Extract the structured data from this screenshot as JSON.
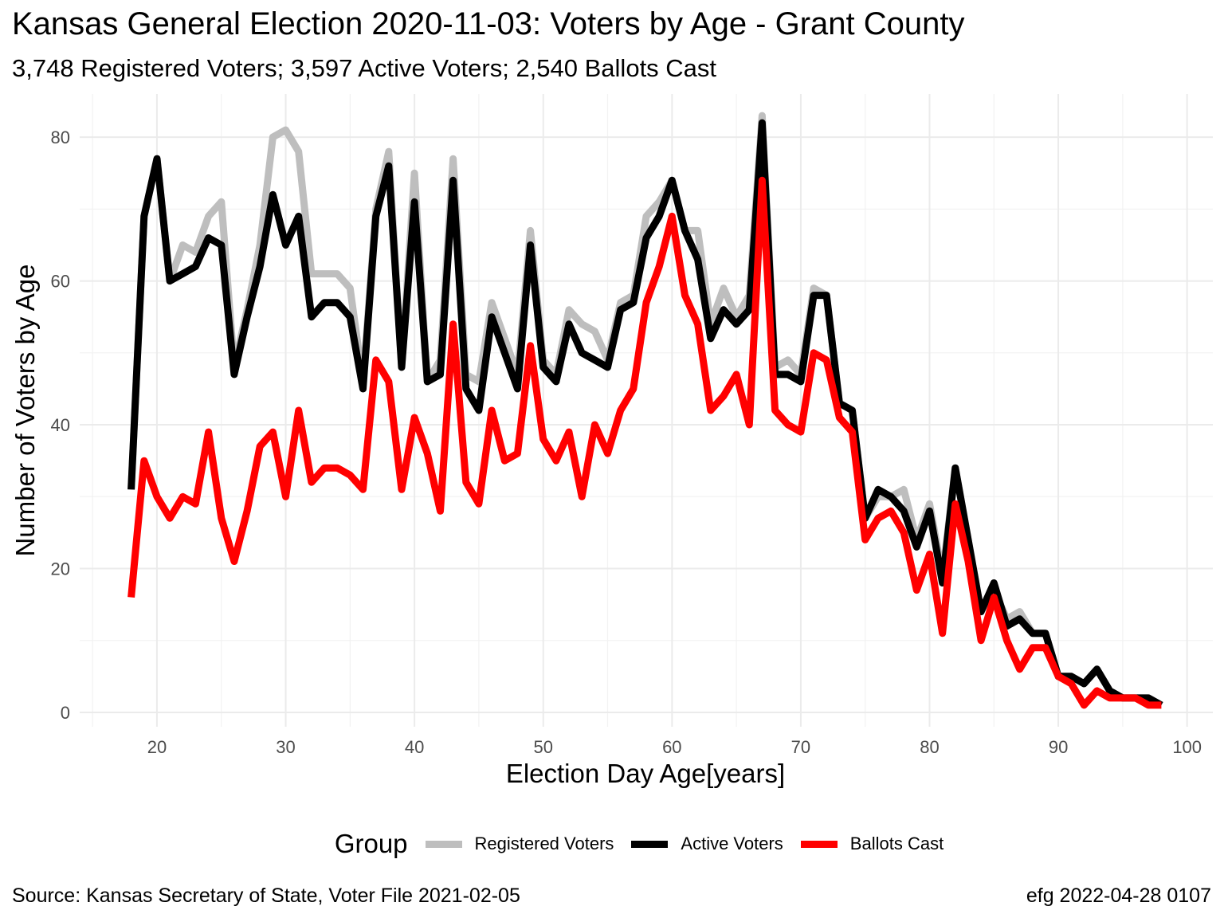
{
  "title": "Kansas General Election 2020-11-03:  Voters by Age - Grant County",
  "subtitle": "3,748 Registered Voters; 3,597 Active Voters; 2,540 Ballots Cast",
  "caption_left": "Source:  Kansas Secretary of State, Voter File  2021-02-05",
  "caption_right": "efg 2022-04-28 0107",
  "legend": {
    "title": "Group",
    "items": [
      {
        "label": "Registered Voters",
        "color": "#bebebe"
      },
      {
        "label": "Active Voters",
        "color": "#000000"
      },
      {
        "label": "Ballots Cast",
        "color": "#ff0000"
      }
    ]
  },
  "chart_data": {
    "type": "line",
    "xlabel": "Election Day Age[years]",
    "ylabel": "Number of Voters by Age",
    "xlim": [
      14,
      102
    ],
    "ylim": [
      -2,
      86
    ],
    "x_ticks": [
      20,
      30,
      40,
      50,
      60,
      70,
      80,
      90,
      100
    ],
    "y_ticks": [
      0,
      20,
      40,
      60,
      80
    ],
    "grid": true,
    "legend_position": "bottom",
    "x": [
      18,
      19,
      20,
      21,
      22,
      23,
      24,
      25,
      26,
      27,
      28,
      29,
      30,
      31,
      32,
      33,
      34,
      35,
      36,
      37,
      38,
      39,
      40,
      41,
      42,
      43,
      44,
      45,
      46,
      47,
      48,
      49,
      50,
      51,
      52,
      53,
      54,
      55,
      56,
      57,
      58,
      59,
      60,
      61,
      62,
      63,
      64,
      65,
      66,
      67,
      68,
      69,
      70,
      71,
      72,
      73,
      74,
      75,
      76,
      77,
      78,
      79,
      80,
      81,
      82,
      83,
      84,
      85,
      86,
      87,
      88,
      89,
      90,
      91,
      92,
      93,
      94,
      95,
      96,
      97,
      98
    ],
    "series": [
      {
        "name": "Registered Voters",
        "color": "#bebebe",
        "values": [
          31,
          69,
          77,
          60,
          65,
          64,
          69,
          71,
          48,
          56,
          65,
          80,
          81,
          78,
          61,
          61,
          61,
          59,
          46,
          70,
          78,
          48,
          75,
          46,
          49,
          77,
          47,
          46,
          57,
          52,
          47,
          67,
          49,
          47,
          56,
          54,
          53,
          49,
          57,
          58,
          69,
          71,
          74,
          67,
          67,
          54,
          59,
          55,
          58,
          83,
          48,
          49,
          47,
          59,
          58,
          43,
          42,
          27,
          30,
          30,
          31,
          24,
          29,
          19,
          34,
          24,
          14,
          17,
          13,
          14,
          11,
          11,
          5,
          5,
          4,
          6,
          3,
          2,
          2,
          2,
          1
        ]
      },
      {
        "name": "Active Voters",
        "color": "#000000",
        "values": [
          31,
          69,
          77,
          60,
          61,
          62,
          66,
          65,
          47,
          55,
          62,
          72,
          65,
          69,
          55,
          57,
          57,
          55,
          45,
          69,
          76,
          48,
          71,
          46,
          47,
          74,
          45,
          42,
          55,
          50,
          45,
          65,
          48,
          46,
          54,
          50,
          49,
          48,
          56,
          57,
          66,
          69,
          74,
          67,
          63,
          52,
          56,
          54,
          56,
          82,
          47,
          47,
          46,
          58,
          58,
          43,
          42,
          27,
          31,
          30,
          28,
          23,
          28,
          18,
          34,
          24,
          14,
          18,
          12,
          13,
          11,
          11,
          5,
          5,
          4,
          6,
          3,
          2,
          2,
          2,
          1
        ]
      },
      {
        "name": "Ballots Cast",
        "color": "#ff0000",
        "values": [
          16,
          35,
          30,
          27,
          30,
          29,
          39,
          27,
          21,
          28,
          37,
          39,
          30,
          42,
          32,
          34,
          34,
          33,
          31,
          49,
          46,
          31,
          41,
          36,
          28,
          54,
          32,
          29,
          42,
          35,
          36,
          51,
          38,
          35,
          39,
          30,
          40,
          36,
          42,
          45,
          57,
          62,
          69,
          58,
          54,
          42,
          44,
          47,
          40,
          74,
          42,
          40,
          39,
          50,
          49,
          41,
          39,
          24,
          27,
          28,
          25,
          17,
          22,
          11,
          29,
          21,
          10,
          16,
          10,
          6,
          9,
          9,
          5,
          4,
          1,
          3,
          2,
          2,
          2,
          1,
          1
        ]
      }
    ]
  }
}
